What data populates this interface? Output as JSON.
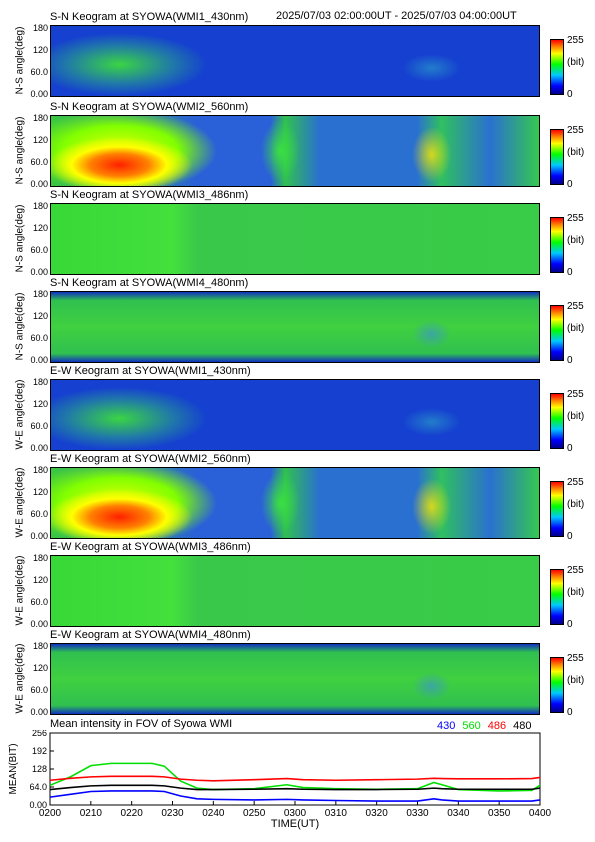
{
  "header": {
    "time_range": "2025/07/03 02:00:00UT - 2025/07/03 04:00:00UT"
  },
  "panels": [
    {
      "title": "S-N Keogram at SYOWA(WMI1_430nm)",
      "ylabel": "N-S angle(deg)",
      "style": "b430"
    },
    {
      "title": "S-N Keogram at SYOWA(WMI2_560nm)",
      "ylabel": "N-S angle(deg)",
      "style": "g560"
    },
    {
      "title": "S-N Keogram at SYOWA(WMI3_486nm)",
      "ylabel": "N-S angle(deg)",
      "style": "flat486"
    },
    {
      "title": "S-N Keogram at SYOWA(WMI4_480nm)",
      "ylabel": "N-S angle(deg)",
      "style": "flat480"
    },
    {
      "title": "E-W Keogram at SYOWA(WMI1_430nm)",
      "ylabel": "W-E angle(deg)",
      "style": "b430"
    },
    {
      "title": "E-W Keogram at SYOWA(WMI2_560nm)",
      "ylabel": "W-E angle(deg)",
      "style": "g560"
    },
    {
      "title": "E-W Keogram at SYOWA(WMI3_486nm)",
      "ylabel": "W-E angle(deg)",
      "style": "flat486"
    },
    {
      "title": "E-W Keogram at SYOWA(WMI4_480nm)",
      "ylabel": "W-E angle(deg)",
      "style": "flat480"
    }
  ],
  "keogram_yticks": [
    "180",
    "120",
    "60.0",
    "0.00"
  ],
  "colorbar": {
    "max": "255",
    "unit": "(bit)",
    "min": "0"
  },
  "chart_data": {
    "type": "line",
    "title": "Mean intensity in FOV of Syowa WMI",
    "xlabel": "TIME(UT)",
    "ylabel": "MEAN(BIT)",
    "x_ticks": [
      "0200",
      "0210",
      "0220",
      "0230",
      "0240",
      "0250",
      "0300",
      "0310",
      "0320",
      "0330",
      "0340",
      "0350",
      "0400"
    ],
    "y_ticks": [
      "256",
      "192",
      "128",
      "64.0",
      "0.00"
    ],
    "ylim": [
      0,
      256
    ],
    "x": [
      0,
      5,
      10,
      15,
      20,
      25,
      28,
      32,
      36,
      40,
      50,
      58,
      62,
      70,
      80,
      90,
      94,
      96,
      100,
      110,
      118,
      120
    ],
    "series": [
      {
        "name": "430",
        "color": "#0000ff",
        "values": [
          28,
          38,
          48,
          50,
          50,
          50,
          48,
          32,
          22,
          20,
          18,
          20,
          18,
          16,
          14,
          14,
          22,
          18,
          14,
          14,
          14,
          18
        ]
      },
      {
        "name": "560",
        "color": "#00e000",
        "values": [
          70,
          100,
          140,
          148,
          148,
          148,
          138,
          85,
          60,
          55,
          58,
          72,
          62,
          58,
          56,
          58,
          80,
          72,
          55,
          50,
          52,
          70
        ]
      },
      {
        "name": "486",
        "color": "#ff0000",
        "values": [
          88,
          95,
          100,
          102,
          102,
          102,
          100,
          92,
          88,
          86,
          90,
          94,
          90,
          88,
          90,
          92,
          95,
          94,
          93,
          93,
          94,
          98
        ]
      },
      {
        "name": "480",
        "color": "#000000",
        "values": [
          55,
          62,
          68,
          70,
          70,
          70,
          68,
          60,
          55,
          55,
          56,
          58,
          56,
          55,
          55,
          56,
          60,
          58,
          56,
          56,
          56,
          60
        ]
      }
    ]
  }
}
